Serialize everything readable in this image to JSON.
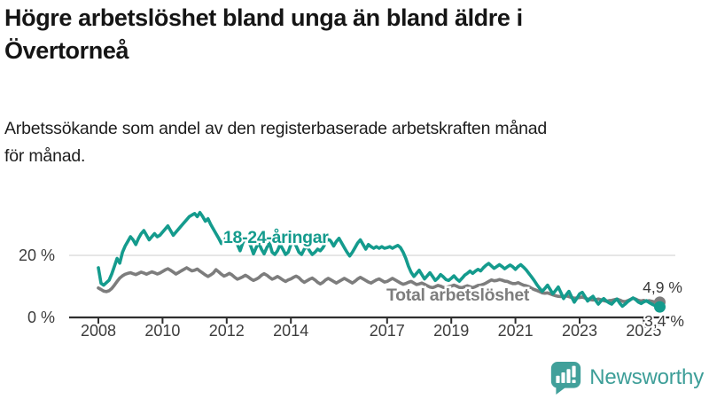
{
  "header": {
    "title_lines": [
      "Högre arbetslöshet bland unga än bland äldre i",
      "Övertorneå"
    ],
    "subtitle_lines": [
      "Arbetssökande som andel av den registerbaserade arbetskraften månad",
      "för månad."
    ]
  },
  "footer": {
    "brand": "Newsworthy",
    "brand_color": "#3d9e98"
  },
  "chart_data": {
    "type": "line",
    "title": "Högre arbetslöshet bland unga än bland äldre i Övertorneå",
    "subtitle": "Arbetssökande som andel av den registerbaserade arbetskraften månad för månad.",
    "x_unit": "months",
    "x_start_year": 2008,
    "x_end_label": "2025",
    "x_ticks": [
      "2008",
      "2010",
      "2012",
      "2014",
      "2017",
      "2019",
      "2021",
      "2023",
      "2025"
    ],
    "y_ticks": [
      {
        "value": 0,
        "label": "0 %"
      },
      {
        "value": 20,
        "label": "20 %"
      }
    ],
    "ylim": [
      0,
      36
    ],
    "grid": "horizontal line at 20% only",
    "legend": "inline series labels",
    "axis_color": "#2f2f2f",
    "grid_color": "#dedede",
    "tick_text_color": "#3c3c3c",
    "end_label_color": "#3a3a3a",
    "series": [
      {
        "name": "Total arbetslöshet",
        "color": "#7d7d7d",
        "end_label": "4,9 %",
        "end_value": 4.9,
        "values": [
          9.5,
          9.0,
          8.5,
          8.3,
          8.6,
          9.3,
          10.4,
          11.6,
          12.7,
          13.4,
          13.9,
          14.2,
          14.4,
          14.1,
          13.8,
          14.2,
          14.6,
          14.3,
          13.9,
          14.3,
          14.7,
          14.4,
          14.0,
          14.3,
          14.8,
          15.3,
          15.7,
          15.2,
          14.6,
          14.0,
          14.5,
          15.0,
          15.5,
          16.0,
          15.5,
          15.0,
          15.2,
          15.6,
          14.9,
          14.3,
          13.7,
          13.2,
          13.7,
          14.3,
          15.4,
          14.7,
          13.9,
          13.3,
          13.7,
          14.2,
          13.7,
          12.9,
          12.3,
          12.7,
          13.1,
          13.6,
          13.1,
          12.4,
          11.9,
          12.3,
          12.8,
          13.6,
          14.1,
          13.6,
          12.9,
          12.3,
          12.7,
          13.2,
          12.7,
          12.1,
          11.6,
          12.1,
          12.4,
          12.9,
          13.3,
          12.8,
          11.9,
          11.3,
          11.8,
          12.3,
          12.7,
          12.1,
          11.3,
          10.8,
          11.3,
          12.1,
          12.6,
          12.1,
          11.6,
          11.1,
          11.6,
          12.1,
          12.6,
          12.1,
          11.6,
          11.1,
          11.7,
          12.4,
          12.9,
          12.4,
          11.9,
          11.4,
          11.1,
          11.6,
          12.1,
          12.4,
          11.9,
          11.4,
          11.6,
          12.1,
          12.6,
          12.1,
          11.6,
          11.1,
          10.7,
          10.9,
          11.3,
          11.6,
          11.1,
          10.6,
          10.8,
          11.1,
          10.7,
          10.2,
          9.8,
          9.6,
          9.9,
          10.3,
          10.1,
          9.7,
          9.6,
          9.9,
          10.1,
          10.4,
          10.1,
          9.7,
          9.6,
          9.9,
          10.2,
          9.9,
          9.6,
          9.9,
          10.3,
          10.4,
          10.7,
          11.1,
          11.6,
          12.1,
          11.8,
          11.9,
          12.2,
          12.0,
          11.7,
          11.6,
          11.2,
          10.9,
          10.9,
          11.2,
          10.8,
          10.4,
          10.2,
          9.9,
          9.4,
          9.0,
          8.7,
          8.3,
          7.9,
          7.8,
          7.9,
          7.6,
          7.3,
          7.0,
          6.8,
          6.7,
          6.8,
          6.9,
          6.7,
          6.4,
          6.2,
          6.3,
          6.4,
          6.6,
          6.3,
          5.9,
          5.7,
          5.6,
          5.7,
          5.9,
          5.7,
          5.4,
          5.2,
          5.4,
          5.5,
          5.7,
          5.9,
          5.6,
          5.2,
          5.1,
          5.4,
          5.8,
          6.2,
          5.9,
          5.5,
          5.3,
          5.5,
          5.2,
          5.4,
          5.2,
          5.0,
          4.9,
          4.9
        ]
      },
      {
        "name": "18-24-åringar",
        "color": "#149b8d",
        "end_label": "3,4 %",
        "end_value": 3.4,
        "values": [
          16.0,
          11.0,
          10.4,
          11.2,
          12.0,
          14.0,
          16.5,
          19.0,
          17.5,
          21.0,
          23.0,
          24.5,
          26.0,
          25.0,
          23.5,
          25.5,
          27.0,
          28.0,
          26.5,
          25.0,
          26.0,
          27.0,
          26.0,
          26.5,
          27.5,
          28.5,
          29.5,
          28.0,
          26.5,
          27.5,
          28.5,
          29.5,
          30.5,
          31.5,
          32.5,
          33.0,
          33.5,
          32.5,
          33.8,
          32.5,
          31.0,
          31.8,
          30.0,
          28.5,
          27.0,
          25.5,
          23.8,
          24.8,
          26.0,
          25.0,
          26.5,
          25.5,
          23.5,
          21.5,
          24.0,
          25.5,
          24.5,
          23.0,
          20.5,
          22.5,
          24.0,
          22.0,
          20.5,
          22.5,
          24.0,
          21.0,
          20.3,
          21.5,
          23.5,
          22.0,
          20.3,
          21.0,
          23.5,
          24.5,
          23.0,
          21.0,
          20.3,
          22.0,
          23.0,
          21.5,
          20.3,
          21.0,
          22.0,
          21.5,
          22.5,
          24.0,
          25.5,
          24.5,
          23.0,
          24.5,
          25.5,
          24.0,
          22.5,
          21.0,
          19.8,
          21.0,
          22.5,
          24.0,
          25.0,
          23.5,
          22.0,
          23.5,
          22.8,
          22.3,
          22.8,
          22.3,
          22.8,
          22.3,
          22.5,
          22.8,
          22.3,
          22.8,
          23.2,
          22.5,
          21.0,
          19.0,
          16.5,
          14.5,
          13.2,
          14.2,
          15.2,
          13.8,
          12.4,
          13.4,
          14.4,
          13.2,
          11.9,
          12.7,
          13.8,
          13.1,
          12.2,
          11.9,
          12.6,
          13.4,
          12.4,
          11.7,
          12.6,
          13.6,
          14.2,
          14.9,
          14.2,
          14.9,
          15.5,
          15.0,
          16.0,
          16.8,
          17.4,
          16.6,
          15.8,
          16.4,
          17.0,
          16.4,
          15.7,
          16.3,
          16.9,
          16.3,
          15.5,
          16.4,
          17.0,
          16.2,
          15.3,
          14.2,
          13.1,
          11.9,
          10.6,
          9.4,
          8.4,
          9.3,
          10.4,
          9.0,
          7.6,
          8.7,
          9.8,
          8.0,
          6.1,
          7.3,
          8.4,
          6.6,
          4.9,
          6.2,
          7.6,
          8.1,
          6.7,
          5.3,
          6.2,
          6.8,
          5.5,
          4.3,
          5.3,
          6.1,
          5.3,
          4.7,
          4.3,
          5.2,
          5.9,
          4.6,
          3.6,
          4.3,
          5.1,
          5.7,
          6.3,
          5.7,
          4.9,
          4.5,
          5.0,
          5.4,
          4.8,
          4.3,
          3.9,
          3.6,
          3.4
        ]
      }
    ]
  }
}
